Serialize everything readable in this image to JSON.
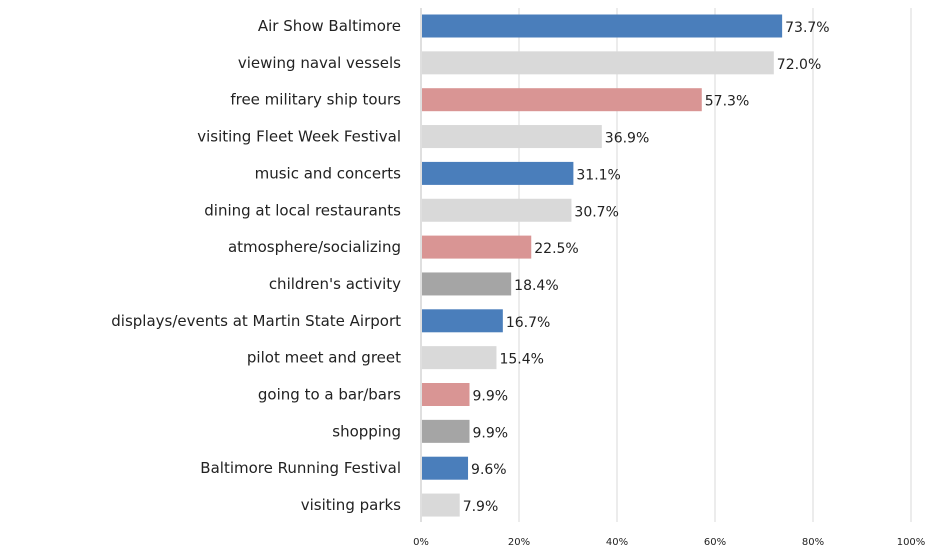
{
  "chart_data": {
    "type": "bar",
    "orientation": "horizontal",
    "categories": [
      "Air Show Baltimore",
      "viewing naval vessels",
      "free military ship tours",
      "visiting Fleet Week Festival",
      "music and concerts",
      "dining at local restaurants",
      "atmosphere/socializing",
      "children's activity",
      "displays/events at Martin State Airport",
      "pilot meet and greet",
      "going to a bar/bars",
      "shopping",
      "Baltimore Running Festival",
      "visiting parks"
    ],
    "values": [
      73.7,
      72.0,
      57.3,
      36.9,
      31.1,
      30.7,
      22.5,
      18.4,
      16.7,
      15.4,
      9.9,
      9.9,
      9.6,
      7.9
    ],
    "value_labels": [
      "73.7%",
      "72.0%",
      "57.3%",
      "36.9%",
      "31.1%",
      "30.7%",
      "22.5%",
      "18.4%",
      "16.7%",
      "15.4%",
      "9.9%",
      "9.9%",
      "9.6%",
      "7.9%"
    ],
    "colors": [
      "#4a7ebb",
      "#d9d9d9",
      "#d99594",
      "#d9d9d9",
      "#4a7ebb",
      "#d9d9d9",
      "#d99594",
      "#a5a5a5",
      "#4a7ebb",
      "#d9d9d9",
      "#d99594",
      "#a5a5a5",
      "#4a7ebb",
      "#d9d9d9"
    ],
    "xlim": [
      0,
      100
    ],
    "x_ticks": [
      0,
      20,
      40,
      60,
      80,
      100
    ],
    "x_tick_labels": [
      "0%",
      "20%",
      "40%",
      "60%",
      "80%",
      "100%"
    ],
    "grid": true,
    "title": "",
    "xlabel": "",
    "ylabel": ""
  }
}
